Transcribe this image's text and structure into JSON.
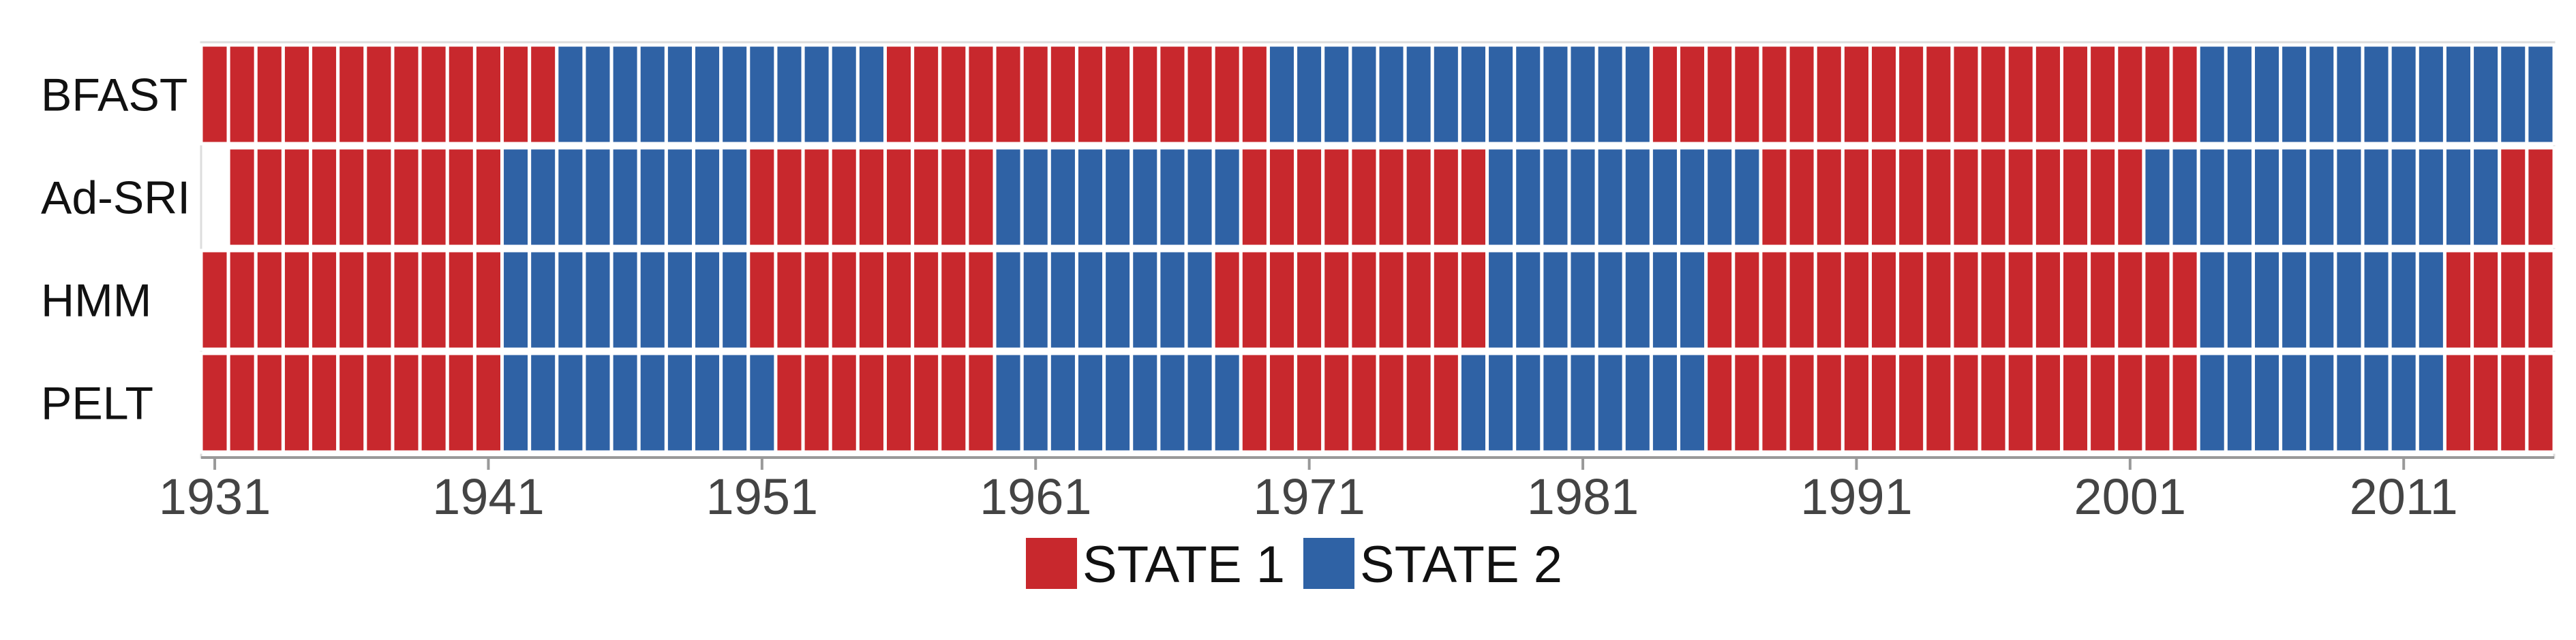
{
  "chart_data": {
    "type": "heatmap",
    "title": "",
    "xlabel": "",
    "ylabel": "",
    "x_start": 1931,
    "x_end": 2016,
    "xlim": [
      1930.5,
      2016.5
    ],
    "x_ticks": [
      "1931",
      "1941",
      "1951",
      "1961",
      "1971",
      "1981",
      "1991",
      "2001",
      "2011"
    ],
    "rows": [
      {
        "label": "BFAST",
        "segments": [
          {
            "state": 1,
            "from": 1931,
            "to": 1943
          },
          {
            "state": 2,
            "from": 1944,
            "to": 1955
          },
          {
            "state": 1,
            "from": 1956,
            "to": 1969
          },
          {
            "state": 2,
            "from": 1970,
            "to": 1983
          },
          {
            "state": 1,
            "from": 1984,
            "to": 2003
          },
          {
            "state": 2,
            "from": 2004,
            "to": 2016
          }
        ]
      },
      {
        "label": "Ad-SRI",
        "segments": [
          {
            "state": 1,
            "from": 1932,
            "to": 1941
          },
          {
            "state": 2,
            "from": 1942,
            "to": 1950
          },
          {
            "state": 1,
            "from": 1951,
            "to": 1959
          },
          {
            "state": 2,
            "from": 1960,
            "to": 1968
          },
          {
            "state": 1,
            "from": 1969,
            "to": 1977
          },
          {
            "state": 2,
            "from": 1978,
            "to": 1987
          },
          {
            "state": 1,
            "from": 1988,
            "to": 2001
          },
          {
            "state": 2,
            "from": 2002,
            "to": 2014
          },
          {
            "state": 1,
            "from": 2015,
            "to": 2016
          }
        ]
      },
      {
        "label": "HMM",
        "segments": [
          {
            "state": 1,
            "from": 1931,
            "to": 1941
          },
          {
            "state": 2,
            "from": 1942,
            "to": 1950
          },
          {
            "state": 1,
            "from": 1951,
            "to": 1959
          },
          {
            "state": 2,
            "from": 1960,
            "to": 1967
          },
          {
            "state": 1,
            "from": 1968,
            "to": 1977
          },
          {
            "state": 2,
            "from": 1978,
            "to": 1985
          },
          {
            "state": 1,
            "from": 1986,
            "to": 2003
          },
          {
            "state": 2,
            "from": 2004,
            "to": 2012
          },
          {
            "state": 1,
            "from": 2013,
            "to": 2016
          }
        ]
      },
      {
        "label": "PELT",
        "segments": [
          {
            "state": 1,
            "from": 1931,
            "to": 1941
          },
          {
            "state": 2,
            "from": 1942,
            "to": 1951
          },
          {
            "state": 1,
            "from": 1952,
            "to": 1959
          },
          {
            "state": 2,
            "from": 1960,
            "to": 1968
          },
          {
            "state": 1,
            "from": 1969,
            "to": 1976
          },
          {
            "state": 2,
            "from": 1977,
            "to": 1985
          },
          {
            "state": 1,
            "from": 1986,
            "to": 2003
          },
          {
            "state": 2,
            "from": 2004,
            "to": 2012
          },
          {
            "state": 1,
            "from": 2013,
            "to": 2016
          }
        ]
      }
    ],
    "legend": [
      {
        "state": 1,
        "label": "STATE 1",
        "color": "#c8282d"
      },
      {
        "state": 2,
        "label": "STATE 2",
        "color": "#2f62a5"
      }
    ],
    "legend_position": "bottom-center",
    "grid": false,
    "colors": {
      "state_1": "#c8282d",
      "state_2": "#2f62a5",
      "cell_border": "#ffffff",
      "axis": "#999999"
    }
  }
}
